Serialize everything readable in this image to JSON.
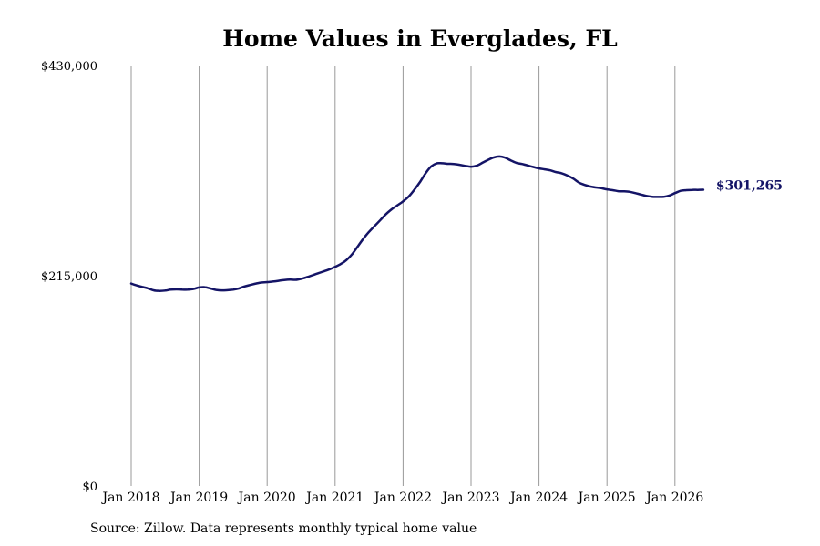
{
  "colors": {
    "line": "#141466",
    "grid": "#999999",
    "text": "#000000"
  },
  "chart_data": {
    "type": "line",
    "title": "Home Values in Everglades, FL",
    "source": "Source: Zillow. Data represents monthly typical home value",
    "xlabel": "",
    "ylabel": "",
    "ylim": [
      0,
      430000
    ],
    "y_ticks": [
      {
        "value": 0,
        "label": "$0"
      },
      {
        "value": 215000,
        "label": "$215,000"
      },
      {
        "value": 430000,
        "label": "$430,000"
      }
    ],
    "x_ticks": [
      {
        "date": "2018-01",
        "label": "Jan 2018"
      },
      {
        "date": "2019-01",
        "label": "Jan 2019"
      },
      {
        "date": "2020-01",
        "label": "Jan 2020"
      },
      {
        "date": "2021-01",
        "label": "Jan 2021"
      },
      {
        "date": "2022-01",
        "label": "Jan 2022"
      },
      {
        "date": "2023-01",
        "label": "Jan 2023"
      },
      {
        "date": "2024-01",
        "label": "Jan 2024"
      },
      {
        "date": "2025-01",
        "label": "Jan 2025"
      },
      {
        "date": "2026-01",
        "label": "Jan 2026"
      }
    ],
    "grid": "vertical",
    "end_label": "$301,265",
    "series": [
      {
        "points": [
          [
            "2018-01",
            207000
          ],
          [
            "2018-02",
            205000
          ],
          [
            "2018-03",
            203500
          ],
          [
            "2018-04",
            202000
          ],
          [
            "2018-05",
            200000
          ],
          [
            "2018-06",
            199500
          ],
          [
            "2018-07",
            199800
          ],
          [
            "2018-08",
            200800
          ],
          [
            "2018-09",
            201000
          ],
          [
            "2018-10",
            200800
          ],
          [
            "2018-11",
            200800
          ],
          [
            "2018-12",
            201500
          ],
          [
            "2019-01",
            203000
          ],
          [
            "2019-02",
            203300
          ],
          [
            "2019-03",
            202000
          ],
          [
            "2019-04",
            200500
          ],
          [
            "2019-05",
            200000
          ],
          [
            "2019-06",
            200200
          ],
          [
            "2019-07",
            200800
          ],
          [
            "2019-08",
            202000
          ],
          [
            "2019-09",
            204000
          ],
          [
            "2019-10",
            205500
          ],
          [
            "2019-11",
            207000
          ],
          [
            "2019-12",
            208000
          ],
          [
            "2020-01",
            208500
          ],
          [
            "2020-02",
            209000
          ],
          [
            "2020-03",
            209800
          ],
          [
            "2020-04",
            210500
          ],
          [
            "2020-05",
            211000
          ],
          [
            "2020-06",
            210800
          ],
          [
            "2020-07",
            211800
          ],
          [
            "2020-08",
            213500
          ],
          [
            "2020-09",
            215500
          ],
          [
            "2020-10",
            217500
          ],
          [
            "2020-11",
            219500
          ],
          [
            "2020-12",
            221500
          ],
          [
            "2021-01",
            224000
          ],
          [
            "2021-02",
            227000
          ],
          [
            "2021-03",
            231000
          ],
          [
            "2021-04",
            237000
          ],
          [
            "2021-05",
            245000
          ],
          [
            "2021-06",
            253000
          ],
          [
            "2021-07",
            260000
          ],
          [
            "2021-08",
            266000
          ],
          [
            "2021-09",
            272000
          ],
          [
            "2021-10",
            278000
          ],
          [
            "2021-11",
            283000
          ],
          [
            "2021-12",
            287000
          ],
          [
            "2022-01",
            291000
          ],
          [
            "2022-02",
            296000
          ],
          [
            "2022-03",
            303000
          ],
          [
            "2022-04",
            311000
          ],
          [
            "2022-05",
            320000
          ],
          [
            "2022-06",
            327000
          ],
          [
            "2022-07",
            330000
          ],
          [
            "2022-08",
            330000
          ],
          [
            "2022-09",
            329500
          ],
          [
            "2022-10",
            329300
          ],
          [
            "2022-11",
            328500
          ],
          [
            "2022-12",
            327300
          ],
          [
            "2023-01",
            326500
          ],
          [
            "2023-02",
            327500
          ],
          [
            "2023-03",
            330500
          ],
          [
            "2023-04",
            333500
          ],
          [
            "2023-05",
            336000
          ],
          [
            "2023-06",
            337000
          ],
          [
            "2023-07",
            335800
          ],
          [
            "2023-08",
            333000
          ],
          [
            "2023-09",
            330500
          ],
          [
            "2023-10",
            329300
          ],
          [
            "2023-11",
            327800
          ],
          [
            "2023-12",
            326200
          ],
          [
            "2024-01",
            324800
          ],
          [
            "2024-02",
            323800
          ],
          [
            "2024-03",
            322800
          ],
          [
            "2024-04",
            321000
          ],
          [
            "2024-05",
            319800
          ],
          [
            "2024-06",
            317500
          ],
          [
            "2024-07",
            314500
          ],
          [
            "2024-08",
            310500
          ],
          [
            "2024-09",
            308000
          ],
          [
            "2024-10",
            306300
          ],
          [
            "2024-11",
            305300
          ],
          [
            "2024-12",
            304500
          ],
          [
            "2025-01",
            303300
          ],
          [
            "2025-02",
            302500
          ],
          [
            "2025-03",
            301500
          ],
          [
            "2025-04",
            301300
          ],
          [
            "2025-05",
            300800
          ],
          [
            "2025-06",
            299500
          ],
          [
            "2025-07",
            298000
          ],
          [
            "2025-08",
            296600
          ],
          [
            "2025-09",
            295800
          ],
          [
            "2025-10",
            295600
          ],
          [
            "2025-11",
            295700
          ],
          [
            "2025-12",
            297000
          ],
          [
            "2026-01",
            299500
          ],
          [
            "2026-02",
            301800
          ],
          [
            "2026-03",
            302500
          ],
          [
            "2026-04",
            302800
          ],
          [
            "2026-05",
            302800
          ],
          [
            "2026-06",
            303000
          ]
        ]
      }
    ]
  }
}
